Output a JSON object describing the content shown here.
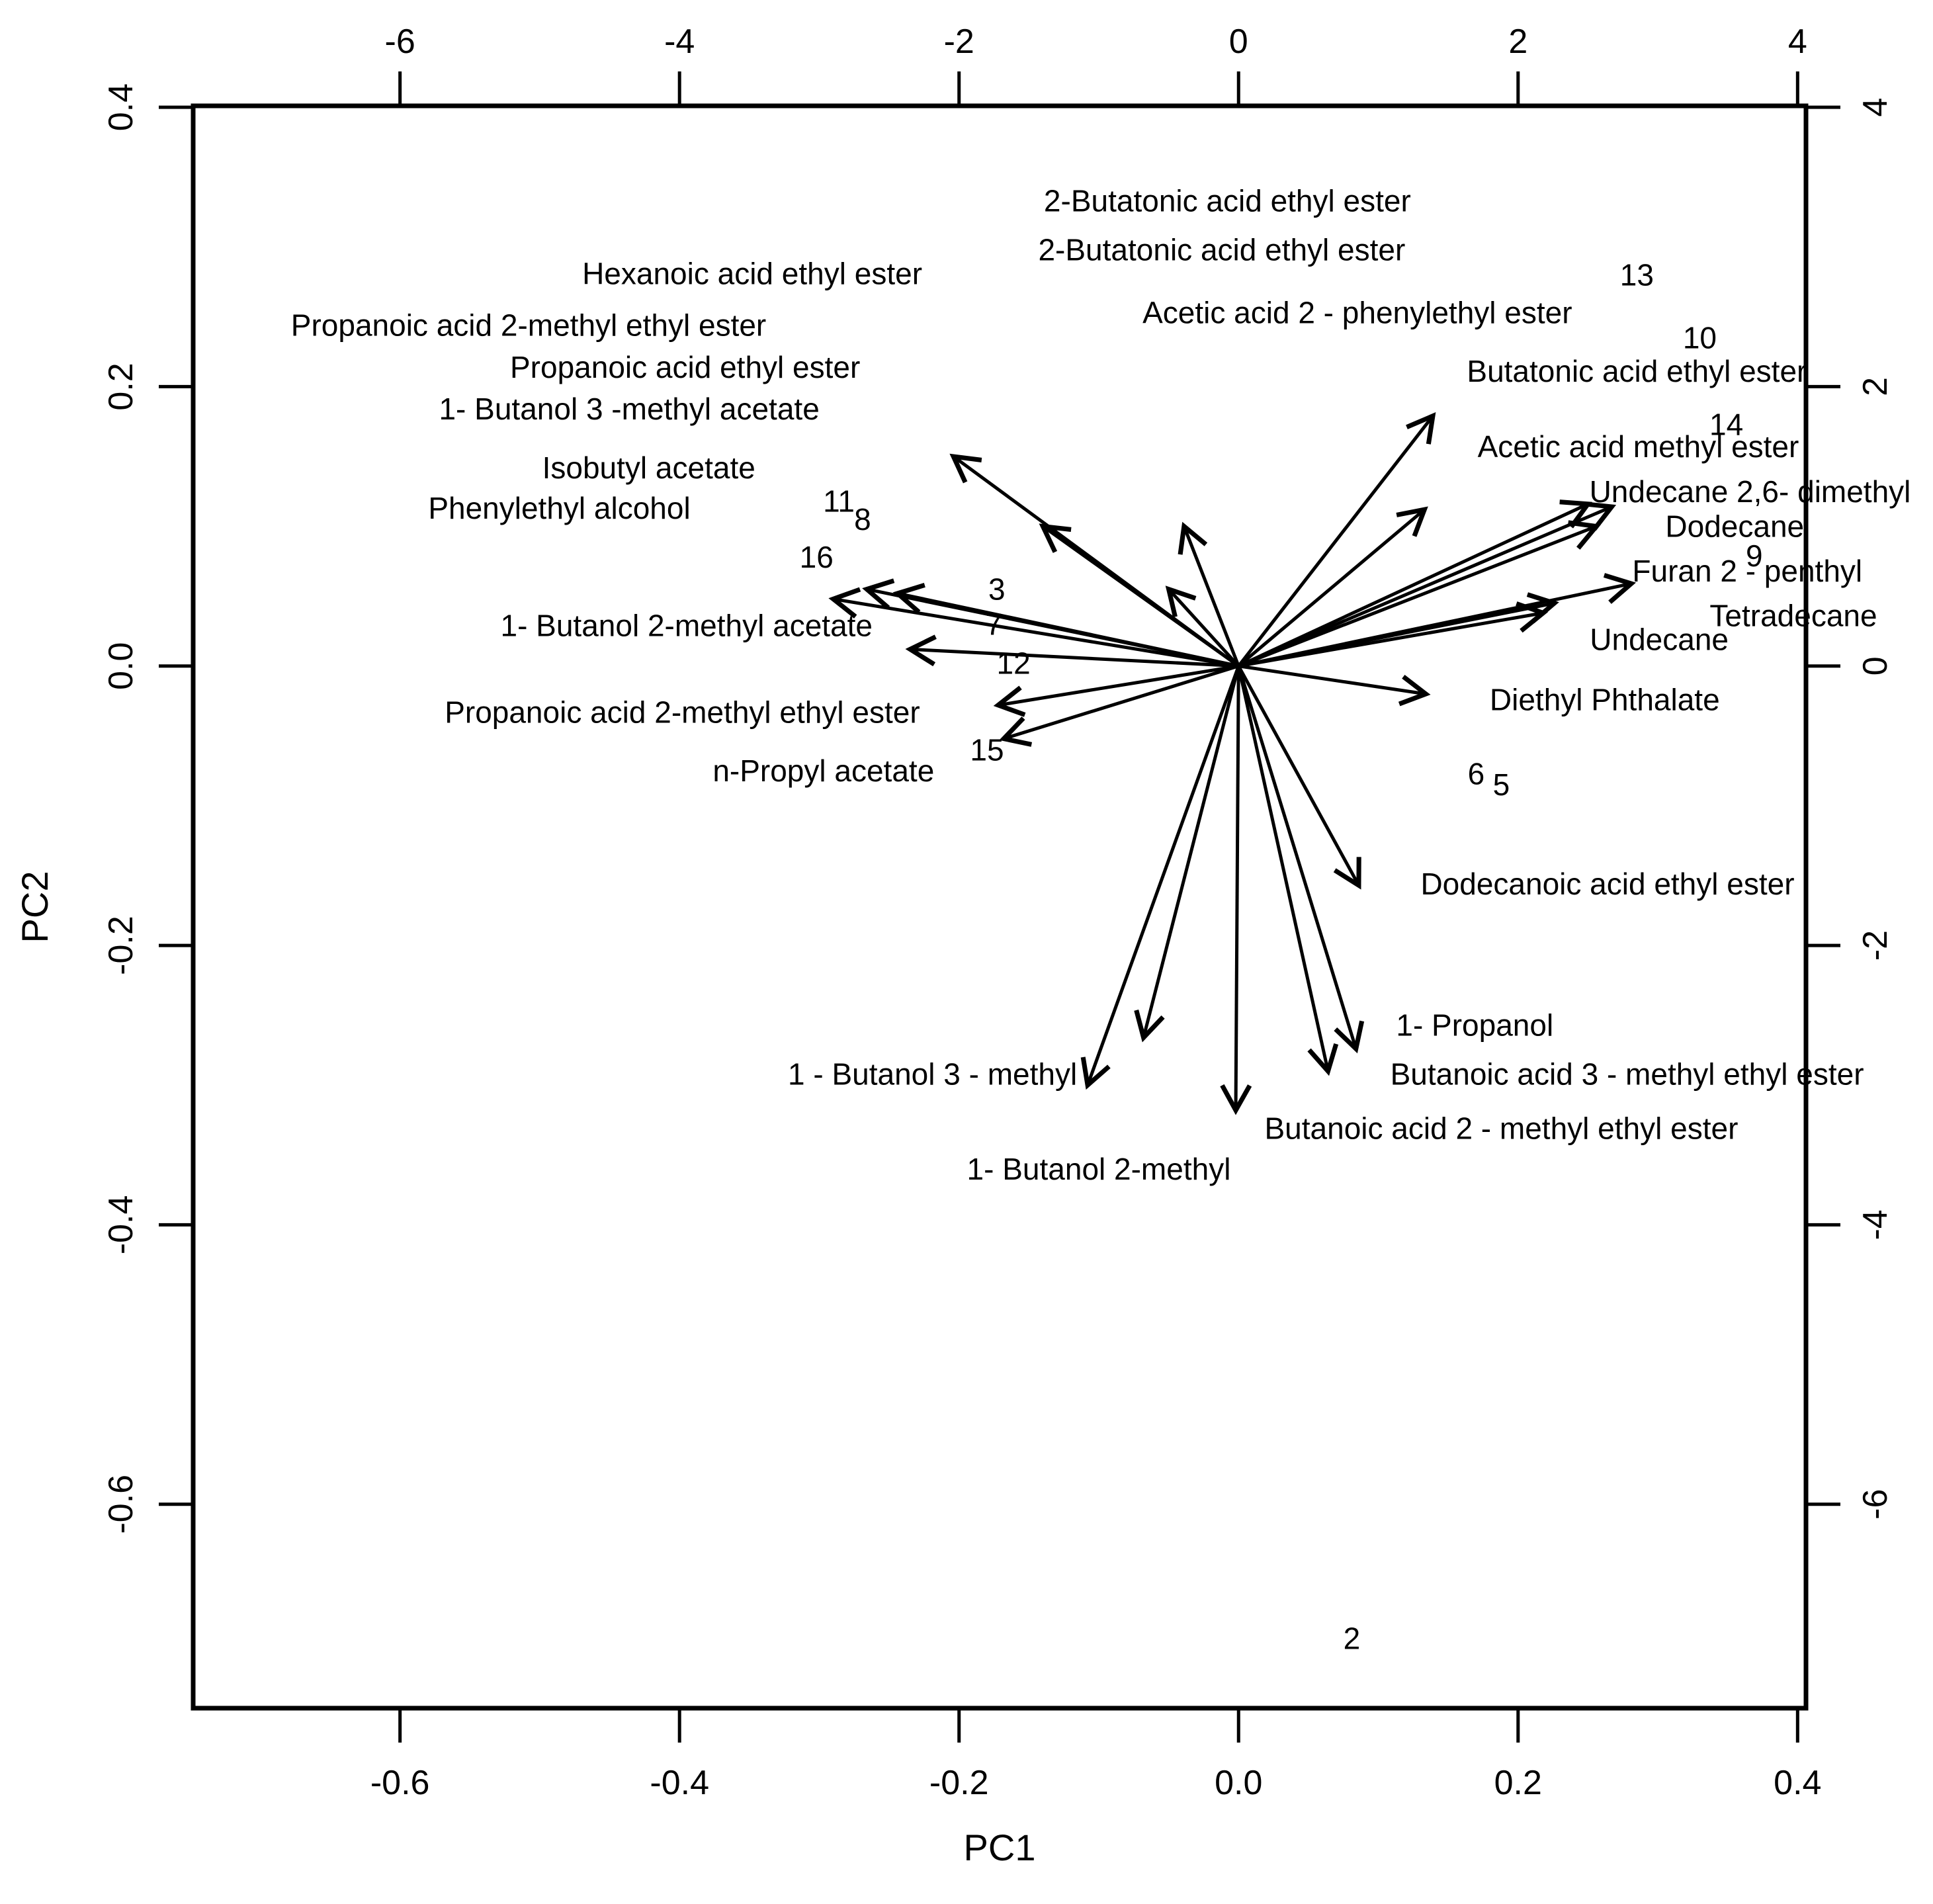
{
  "figure": {
    "kind": "PCA biplot of volatile compound loadings",
    "background": "#ffffff",
    "ink": "#000000"
  },
  "chart_data": {
    "type": "scatter",
    "subtype": "pca-biplot-loading-arrows",
    "title": "",
    "xlabel": "PC1",
    "ylabel": "PC2",
    "grid": false,
    "legend": "none",
    "axes": {
      "bottom": {
        "title": "PC1",
        "range_units": [
          -7.48,
          4.06
        ],
        "ticks": [
          {
            "label": "-0.6",
            "u": -6
          },
          {
            "label": "-0.4",
            "u": -4
          },
          {
            "label": "-0.2",
            "u": -2
          },
          {
            "label": "0.0",
            "u": 0
          },
          {
            "label": "0.2",
            "u": 2
          },
          {
            "label": "0.4",
            "u": 4
          }
        ]
      },
      "top": {
        "title": "",
        "range_units": [
          -7.48,
          4.06
        ],
        "ticks": [
          {
            "label": "-6",
            "u": -6
          },
          {
            "label": "-4",
            "u": -4
          },
          {
            "label": "-2",
            "u": -2
          },
          {
            "label": "0",
            "u": 0
          },
          {
            "label": "2",
            "u": 2
          },
          {
            "label": "4",
            "u": 4
          }
        ]
      },
      "left": {
        "title": "PC2",
        "range_units": [
          -7.46,
          4.01
        ],
        "ticks": [
          {
            "label": "0.4",
            "u": 4
          },
          {
            "label": "0.2",
            "u": 2
          },
          {
            "label": "0.0",
            "u": 0
          },
          {
            "label": "-0.2",
            "u": -2
          },
          {
            "label": "-0.4",
            "u": -4
          },
          {
            "label": "-0.6",
            "u": -6
          }
        ]
      },
      "right": {
        "title": "",
        "range_units": [
          -7.46,
          4.01
        ],
        "ticks": [
          {
            "label": "4",
            "u": 4
          },
          {
            "label": "2",
            "u": 2
          },
          {
            "label": "0",
            "u": 0
          },
          {
            "label": "-2",
            "u": -2
          },
          {
            "label": "-4",
            "u": -4
          },
          {
            "label": "-6",
            "u": -6
          }
        ]
      }
    },
    "origin_units": [
      0,
      0
    ],
    "loading_arrows": [
      {
        "x": 1.39,
        "y": 1.79
      },
      {
        "x": 1.33,
        "y": 1.12
      },
      {
        "x": -0.39,
        "y": 1.0
      },
      {
        "x": -0.5,
        "y": 0.55
      },
      {
        "x": -2.04,
        "y": 1.5
      },
      {
        "x": -1.4,
        "y": 1.0
      },
      {
        "x": -2.9,
        "y": 0.48
      },
      {
        "x": -2.66,
        "y": 0.55
      },
      {
        "x": -2.44,
        "y": 0.52
      },
      {
        "x": -2.35,
        "y": 0.12
      },
      {
        "x": -1.72,
        "y": -0.28
      },
      {
        "x": -1.68,
        "y": -0.52
      },
      {
        "x": -1.08,
        "y": -3.0
      },
      {
        "x": -0.68,
        "y": -2.66
      },
      {
        "x": -0.02,
        "y": -3.18
      },
      {
        "x": 0.64,
        "y": -2.9
      },
      {
        "x": 0.84,
        "y": -2.74
      },
      {
        "x": 0.86,
        "y": -1.57
      },
      {
        "x": 1.34,
        "y": -0.2
      },
      {
        "x": 2.81,
        "y": 0.59
      },
      {
        "x": 2.26,
        "y": 0.45
      },
      {
        "x": 2.18,
        "y": 0.38
      },
      {
        "x": 2.67,
        "y": 1.14
      },
      {
        "x": 2.5,
        "y": 1.16
      },
      {
        "x": 2.56,
        "y": 1.0
      }
    ],
    "compound_labels": [
      {
        "text": "2-Butatonic acid ethyl ester",
        "x": -0.08,
        "y": 3.33
      },
      {
        "text": "2-Butatonic acid ethyl ester",
        "x": -0.12,
        "y": 2.98
      },
      {
        "text": "Hexanoic acid ethyl ester",
        "x": -3.48,
        "y": 2.81
      },
      {
        "text": "Acetic acid 2 - phenylethyl ester",
        "x": 0.85,
        "y": 2.53
      },
      {
        "text": "Propanoic acid 2-methyl ethyl ester",
        "x": -5.08,
        "y": 2.44
      },
      {
        "text": "Propanoic acid ethyl ester",
        "x": -3.96,
        "y": 2.14
      },
      {
        "text": "Butatonic acid ethyl ester",
        "x": 2.85,
        "y": 2.11
      },
      {
        "text": "1- Butanol 3 -methyl acetate",
        "x": -4.36,
        "y": 1.84
      },
      {
        "text": "Acetic acid methyl ester",
        "x": 2.86,
        "y": 1.57
      },
      {
        "text": "Isobutyl acetate",
        "x": -4.22,
        "y": 1.42
      },
      {
        "text": "Phenylethyl alcohol",
        "x": -4.86,
        "y": 1.13
      },
      {
        "text": "Undecane 2,6- dimethyl",
        "x": 3.66,
        "y": 1.25
      },
      {
        "text": "Dodecane",
        "x": 3.55,
        "y": 1.0
      },
      {
        "text": "Furan 2 - penthyl",
        "x": 3.64,
        "y": 0.68
      },
      {
        "text": "1- Butanol 2-methyl acetate",
        "x": -3.95,
        "y": 0.29
      },
      {
        "text": "Tetradecane",
        "x": 3.97,
        "y": 0.36
      },
      {
        "text": "Undecane",
        "x": 3.01,
        "y": 0.19
      },
      {
        "text": "Propanoic acid 2-methyl ethyl ester",
        "x": -3.98,
        "y": -0.33
      },
      {
        "text": "Diethyl Phthalate",
        "x": 2.62,
        "y": -0.24
      },
      {
        "text": "n-Propyl acetate",
        "x": -2.97,
        "y": -0.75
      },
      {
        "text": "Dodecanoic acid ethyl ester",
        "x": 2.64,
        "y": -1.56
      },
      {
        "text": "1- Propanol",
        "x": 1.69,
        "y": -2.57
      },
      {
        "text": "1 - Butanol 3 - methyl",
        "x": -2.19,
        "y": -2.92
      },
      {
        "text": "Butanoic acid 3 - methyl ethyl ester",
        "x": 2.78,
        "y": -2.92
      },
      {
        "text": "Butanoic acid 2 - methyl ethyl ester",
        "x": 1.88,
        "y": -3.31
      },
      {
        "text": "1- Butanol 2-methyl",
        "x": -1.0,
        "y": -3.6
      }
    ],
    "point_numbers": [
      {
        "text": "13",
        "x": 2.85,
        "y": 2.8
      },
      {
        "text": "10",
        "x": 3.3,
        "y": 2.35
      },
      {
        "text": "14",
        "x": 3.49,
        "y": 1.73
      },
      {
        "text": "11",
        "x": -2.86,
        "y": 1.18
      },
      {
        "text": "8",
        "x": -2.69,
        "y": 1.05
      },
      {
        "text": "16",
        "x": -3.02,
        "y": 0.78
      },
      {
        "text": "3",
        "x": -1.73,
        "y": 0.55
      },
      {
        "text": "9",
        "x": 3.69,
        "y": 0.79
      },
      {
        "text": "7",
        "x": -1.75,
        "y": 0.3
      },
      {
        "text": "12",
        "x": -1.61,
        "y": 0.02
      },
      {
        "text": "15",
        "x": -1.8,
        "y": -0.6
      },
      {
        "text": "6",
        "x": 1.7,
        "y": -0.77
      },
      {
        "text": "5",
        "x": 1.88,
        "y": -0.85
      },
      {
        "text": "2",
        "x": 0.81,
        "y": -6.96
      }
    ]
  }
}
